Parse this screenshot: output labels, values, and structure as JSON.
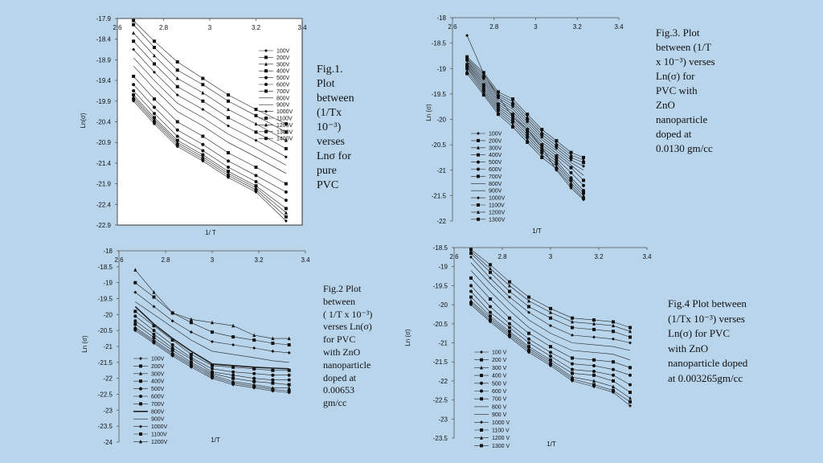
{
  "captions": {
    "fig1": [
      "Fig.1.",
      "Plot",
      "between",
      "(1/Tx",
      "10⁻³)",
      "verses",
      "Lnσ for",
      "pure",
      "PVC"
    ],
    "fig2": [
      "Fig.2  Plot",
      "between",
      "( 1/T x 10⁻³)",
      "verses Ln(σ)",
      "for PVC",
      "with ZnO",
      "nanoparticle",
      "doped at",
      "0.00653",
      "gm/cc"
    ],
    "fig3": [
      "Fig.3. Plot",
      "between (1/T",
      "x 10⁻³) verses",
      "Ln(σ)  for",
      "PVC  with",
      "ZnO",
      "nanoparticle",
      "doped at",
      "0.0130 gm/cc"
    ],
    "fig4": [
      "Fig.4 Plot between",
      "(1/Tx 10⁻³) verses",
      "Ln(σ)  for PVC",
      "with ZnO",
      "nanoparticle doped",
      "at 0.003265gm/cc"
    ]
  },
  "chart_data": [
    {
      "id": "fig1",
      "type": "line",
      "xlabel": "1/ T",
      "ylabel": "Ln(σ)",
      "xlim": [
        2.6,
        3.4
      ],
      "ylim": [
        -22.9,
        -17.9
      ],
      "xticks": [
        "2.6",
        "2.8",
        "3",
        "3.2",
        "3.4"
      ],
      "yticks": [
        "-17.9",
        "-18.4",
        "-18.9",
        "-19.4",
        "-19.9",
        "-20.4",
        "-20.9",
        "-21.4",
        "-21.9",
        "-22.4",
        "-22.9"
      ],
      "x": [
        2.67,
        2.76,
        2.86,
        2.97,
        3.08,
        3.2,
        3.33
      ],
      "series": [
        {
          "name": "100V",
          "values": [
            -19.9,
            -20.45,
            -21.0,
            -21.35,
            -21.75,
            -22.1,
            -22.8
          ]
        },
        {
          "name": "200V",
          "values": [
            -19.85,
            -20.4,
            -20.95,
            -21.3,
            -21.7,
            -22.05,
            -22.7
          ]
        },
        {
          "name": "300V",
          "values": [
            -19.8,
            -20.35,
            -20.9,
            -21.25,
            -21.65,
            -22.0,
            -22.6
          ]
        },
        {
          "name": "400V",
          "values": [
            -19.75,
            -20.3,
            -20.85,
            -21.2,
            -21.6,
            -21.95,
            -22.5
          ]
        },
        {
          "name": "500V",
          "values": [
            -19.65,
            -20.2,
            -20.75,
            -21.1,
            -21.5,
            -21.85,
            -22.3
          ]
        },
        {
          "name": "600V",
          "values": [
            -19.5,
            -20.05,
            -20.6,
            -20.95,
            -21.35,
            -21.7,
            -22.1
          ]
        },
        {
          "name": "700V",
          "values": [
            -19.3,
            -19.85,
            -20.4,
            -20.75,
            -21.15,
            -21.5,
            -21.9
          ]
        },
        {
          "name": "800V",
          "values": [
            -19.05,
            -19.6,
            -20.15,
            -20.5,
            -20.9,
            -21.25,
            -21.65
          ]
        },
        {
          "name": "900V",
          "values": [
            -18.85,
            -19.4,
            -19.95,
            -20.3,
            -20.7,
            -21.05,
            -21.45
          ]
        },
        {
          "name": "1000V",
          "values": [
            -18.65,
            -19.2,
            -19.75,
            -20.1,
            -20.5,
            -20.85,
            -21.25
          ]
        },
        {
          "name": "1100V",
          "values": [
            -18.45,
            -19.0,
            -19.55,
            -19.9,
            -20.3,
            -20.65,
            -21.05
          ]
        },
        {
          "name": "1200V",
          "values": [
            -18.25,
            -18.8,
            -19.35,
            -19.7,
            -20.1,
            -20.45,
            -20.85
          ]
        },
        {
          "name": "1300V",
          "values": [
            -18.05,
            -18.6,
            -19.15,
            -19.5,
            -19.9,
            -20.25,
            -20.65
          ]
        },
        {
          "name": "1400V",
          "values": [
            -17.95,
            -18.45,
            -18.95,
            -19.35,
            -19.75,
            -20.1,
            -20.45
          ]
        }
      ]
    },
    {
      "id": "fig3",
      "type": "line",
      "xlabel": "1/T",
      "ylabel": "Ln (σ)",
      "xlim": [
        2.6,
        3.4
      ],
      "ylim": [
        -22,
        -18
      ],
      "xticks": [
        "2.6",
        "2.8",
        "3",
        "3.2",
        "3.4"
      ],
      "yticks": [
        "-18",
        "-18.5",
        "-19",
        "-19.5",
        "-20",
        "-20.5",
        "-21",
        "-21.5",
        "-22"
      ],
      "x": [
        2.67,
        2.75,
        2.82,
        2.89,
        2.96,
        3.03,
        3.1,
        3.17,
        3.23
      ],
      "series": [
        {
          "name": "100V",
          "values": [
            -18.35,
            -19.1,
            -19.55,
            -19.95,
            -20.2,
            -20.55,
            -21.0,
            -21.35,
            -21.58
          ]
        },
        {
          "name": "200V",
          "values": [
            -19.1,
            -19.52,
            -19.9,
            -20.15,
            -20.45,
            -20.75,
            -20.97,
            -21.3,
            -21.55
          ]
        },
        {
          "name": "300V",
          "values": [
            -19.05,
            -19.48,
            -19.86,
            -20.1,
            -20.4,
            -20.7,
            -20.92,
            -21.25,
            -21.5
          ]
        },
        {
          "name": "400V",
          "values": [
            -19.0,
            -19.44,
            -19.82,
            -20.05,
            -20.35,
            -20.65,
            -20.87,
            -21.2,
            -21.45
          ]
        },
        {
          "name": "500V",
          "values": [
            -18.97,
            -19.4,
            -19.78,
            -20.0,
            -20.3,
            -20.6,
            -20.82,
            -21.15,
            -21.4
          ]
        },
        {
          "name": "600V",
          "values": [
            -18.95,
            -19.36,
            -19.74,
            -19.95,
            -20.25,
            -20.55,
            -20.77,
            -21.05,
            -21.3
          ]
        },
        {
          "name": "700V",
          "values": [
            -18.92,
            -19.32,
            -19.7,
            -19.9,
            -20.2,
            -20.5,
            -20.72,
            -20.95,
            -21.2
          ]
        },
        {
          "name": "800V",
          "values": [
            -18.9,
            -19.28,
            -19.66,
            -19.85,
            -20.15,
            -20.45,
            -20.67,
            -20.9,
            -21.1
          ]
        },
        {
          "name": "900V",
          "values": [
            -18.87,
            -19.24,
            -19.62,
            -19.8,
            -20.1,
            -20.4,
            -20.62,
            -20.85,
            -21.0
          ]
        },
        {
          "name": "1000V",
          "values": [
            -18.85,
            -19.2,
            -19.58,
            -19.75,
            -20.05,
            -20.35,
            -20.57,
            -20.8,
            -20.92
          ]
        },
        {
          "name": "1100V",
          "values": [
            -18.82,
            -19.16,
            -19.54,
            -19.7,
            -20.0,
            -20.3,
            -20.52,
            -20.75,
            -20.85
          ]
        },
        {
          "name": "1200V",
          "values": [
            -18.8,
            -19.12,
            -19.5,
            -19.65,
            -19.95,
            -20.25,
            -20.47,
            -20.7,
            -20.8
          ]
        },
        {
          "name": "1300V",
          "values": [
            -18.77,
            -19.08,
            -19.46,
            -19.6,
            -19.9,
            -20.2,
            -20.42,
            -20.65,
            -20.75
          ]
        }
      ]
    },
    {
      "id": "fig2",
      "type": "line",
      "xlabel": "1/T",
      "ylabel": "Ln (σ)",
      "xlim": [
        2.6,
        3.4
      ],
      "ylim": [
        -24,
        -18
      ],
      "xticks": [
        "2.6",
        "2.8",
        "3",
        "3.2",
        "3.4"
      ],
      "yticks": [
        "-18",
        "-18.5",
        "-19",
        "-19.5",
        "-20",
        "-20.5",
        "-21",
        "-21.5",
        "-22",
        "-22.5",
        "-23",
        "-23.5",
        "-24"
      ],
      "x": [
        2.67,
        2.75,
        2.83,
        2.91,
        3.0,
        3.09,
        3.18,
        3.26,
        3.33
      ],
      "series": [
        {
          "name": "100V",
          "values": [
            -20.5,
            -20.9,
            -21.3,
            -21.65,
            -22.0,
            -22.2,
            -22.3,
            -22.4,
            -22.45
          ]
        },
        {
          "name": "200V",
          "values": [
            -20.45,
            -20.85,
            -21.25,
            -21.6,
            -21.95,
            -22.15,
            -22.25,
            -22.35,
            -22.4
          ]
        },
        {
          "name": "300V",
          "values": [
            -20.4,
            -20.8,
            -21.2,
            -21.55,
            -21.9,
            -22.1,
            -22.2,
            -22.3,
            -22.3
          ]
        },
        {
          "name": "400V",
          "values": [
            -20.3,
            -20.72,
            -21.12,
            -21.5,
            -21.85,
            -22.0,
            -22.1,
            -22.15,
            -22.2
          ]
        },
        {
          "name": "500V",
          "values": [
            -20.2,
            -20.62,
            -21.05,
            -21.4,
            -21.8,
            -21.9,
            -22.0,
            -22.05,
            -22.05
          ]
        },
        {
          "name": "600V",
          "values": [
            -20.05,
            -20.5,
            -20.95,
            -21.35,
            -21.7,
            -21.8,
            -21.85,
            -21.9,
            -21.9
          ]
        },
        {
          "name": "700V",
          "values": [
            -19.9,
            -20.35,
            -20.8,
            -21.25,
            -21.6,
            -21.65,
            -21.7,
            -21.75,
            -21.75
          ]
        },
        {
          "name": "800V",
          "values": [
            -19.75,
            -20.3,
            -20.75,
            -21.15,
            -21.55,
            -21.6,
            -21.65,
            -21.68,
            -21.7
          ]
        },
        {
          "name": "900V",
          "values": [
            -19.6,
            -20.0,
            -20.4,
            -20.8,
            -21.15,
            -21.25,
            -21.35,
            -21.45,
            -21.5
          ]
        },
        {
          "name": "1000V",
          "values": [
            -19.3,
            -19.75,
            -20.2,
            -20.55,
            -20.85,
            -20.95,
            -21.05,
            -21.15,
            -21.2
          ]
        },
        {
          "name": "1100V",
          "values": [
            -19.0,
            -19.45,
            -19.95,
            -20.25,
            -20.55,
            -20.7,
            -20.8,
            -20.9,
            -20.95
          ]
        },
        {
          "name": "1200V",
          "values": [
            -18.6,
            -19.3,
            -19.95,
            -20.15,
            -20.25,
            -20.35,
            -20.65,
            -20.75,
            -20.75
          ]
        }
      ]
    },
    {
      "id": "fig4",
      "type": "line",
      "xlabel": "1/T",
      "ylabel": "Ln (σ)",
      "xlim": [
        2.6,
        3.4
      ],
      "ylim": [
        -23.5,
        -18.5
      ],
      "xticks": [
        "2.6",
        "2.8",
        "3",
        "3.2",
        "3.4"
      ],
      "yticks": [
        "-18.5",
        "-19",
        "-19.5",
        "-20",
        "-20.5",
        "-21",
        "-21.5",
        "-22",
        "-22.5",
        "-23",
        "-23.5"
      ],
      "x": [
        2.67,
        2.75,
        2.83,
        2.91,
        3.0,
        3.09,
        3.18,
        3.26,
        3.33
      ],
      "series": [
        {
          "name": "100 V",
          "values": [
            -20.0,
            -20.45,
            -20.85,
            -21.25,
            -21.6,
            -22.0,
            -22.15,
            -22.3,
            -22.65
          ]
        },
        {
          "name": "200 V",
          "values": [
            -19.95,
            -20.4,
            -20.8,
            -21.2,
            -21.55,
            -21.95,
            -22.1,
            -22.25,
            -22.55
          ]
        },
        {
          "name": "300 V",
          "values": [
            -19.9,
            -20.35,
            -20.75,
            -21.15,
            -21.5,
            -21.9,
            -22.0,
            -22.15,
            -22.45
          ]
        },
        {
          "name": "400 V",
          "values": [
            -19.8,
            -20.3,
            -20.7,
            -21.1,
            -21.45,
            -21.8,
            -21.85,
            -22.0,
            -22.3
          ]
        },
        {
          "name": "500 V",
          "values": [
            -19.65,
            -20.2,
            -20.6,
            -21.0,
            -21.35,
            -21.7,
            -21.75,
            -21.85,
            -22.1
          ]
        },
        {
          "name": "600 V",
          "values": [
            -19.5,
            -20.05,
            -20.5,
            -20.9,
            -21.25,
            -21.55,
            -21.6,
            -21.7,
            -21.85
          ]
        },
        {
          "name": "700 V",
          "values": [
            -19.3,
            -19.85,
            -20.35,
            -20.75,
            -21.1,
            -21.4,
            -21.45,
            -21.5,
            -21.65
          ]
        },
        {
          "name": "800 V",
          "values": [
            -19.1,
            -19.65,
            -20.15,
            -20.6,
            -20.95,
            -21.2,
            -21.25,
            -21.3,
            -21.45
          ]
        },
        {
          "name": "900 V",
          "values": [
            -18.9,
            -19.45,
            -19.95,
            -20.4,
            -20.75,
            -21.0,
            -21.05,
            -21.1,
            -21.2
          ]
        },
        {
          "name": "1000 V",
          "values": [
            -18.75,
            -19.3,
            -19.8,
            -20.2,
            -20.55,
            -20.8,
            -20.85,
            -20.9,
            -21.0
          ]
        },
        {
          "name": "1100 V",
          "values": [
            -18.65,
            -19.15,
            -19.65,
            -20.05,
            -20.35,
            -20.6,
            -20.65,
            -20.7,
            -20.85
          ]
        },
        {
          "name": "1200 V",
          "values": [
            -18.6,
            -19.05,
            -19.5,
            -19.9,
            -20.2,
            -20.45,
            -20.5,
            -20.55,
            -20.7
          ]
        },
        {
          "name": "1300 V",
          "values": [
            -18.55,
            -18.95,
            -19.4,
            -19.8,
            -20.1,
            -20.35,
            -20.4,
            -20.45,
            -20.6
          ]
        }
      ]
    }
  ]
}
